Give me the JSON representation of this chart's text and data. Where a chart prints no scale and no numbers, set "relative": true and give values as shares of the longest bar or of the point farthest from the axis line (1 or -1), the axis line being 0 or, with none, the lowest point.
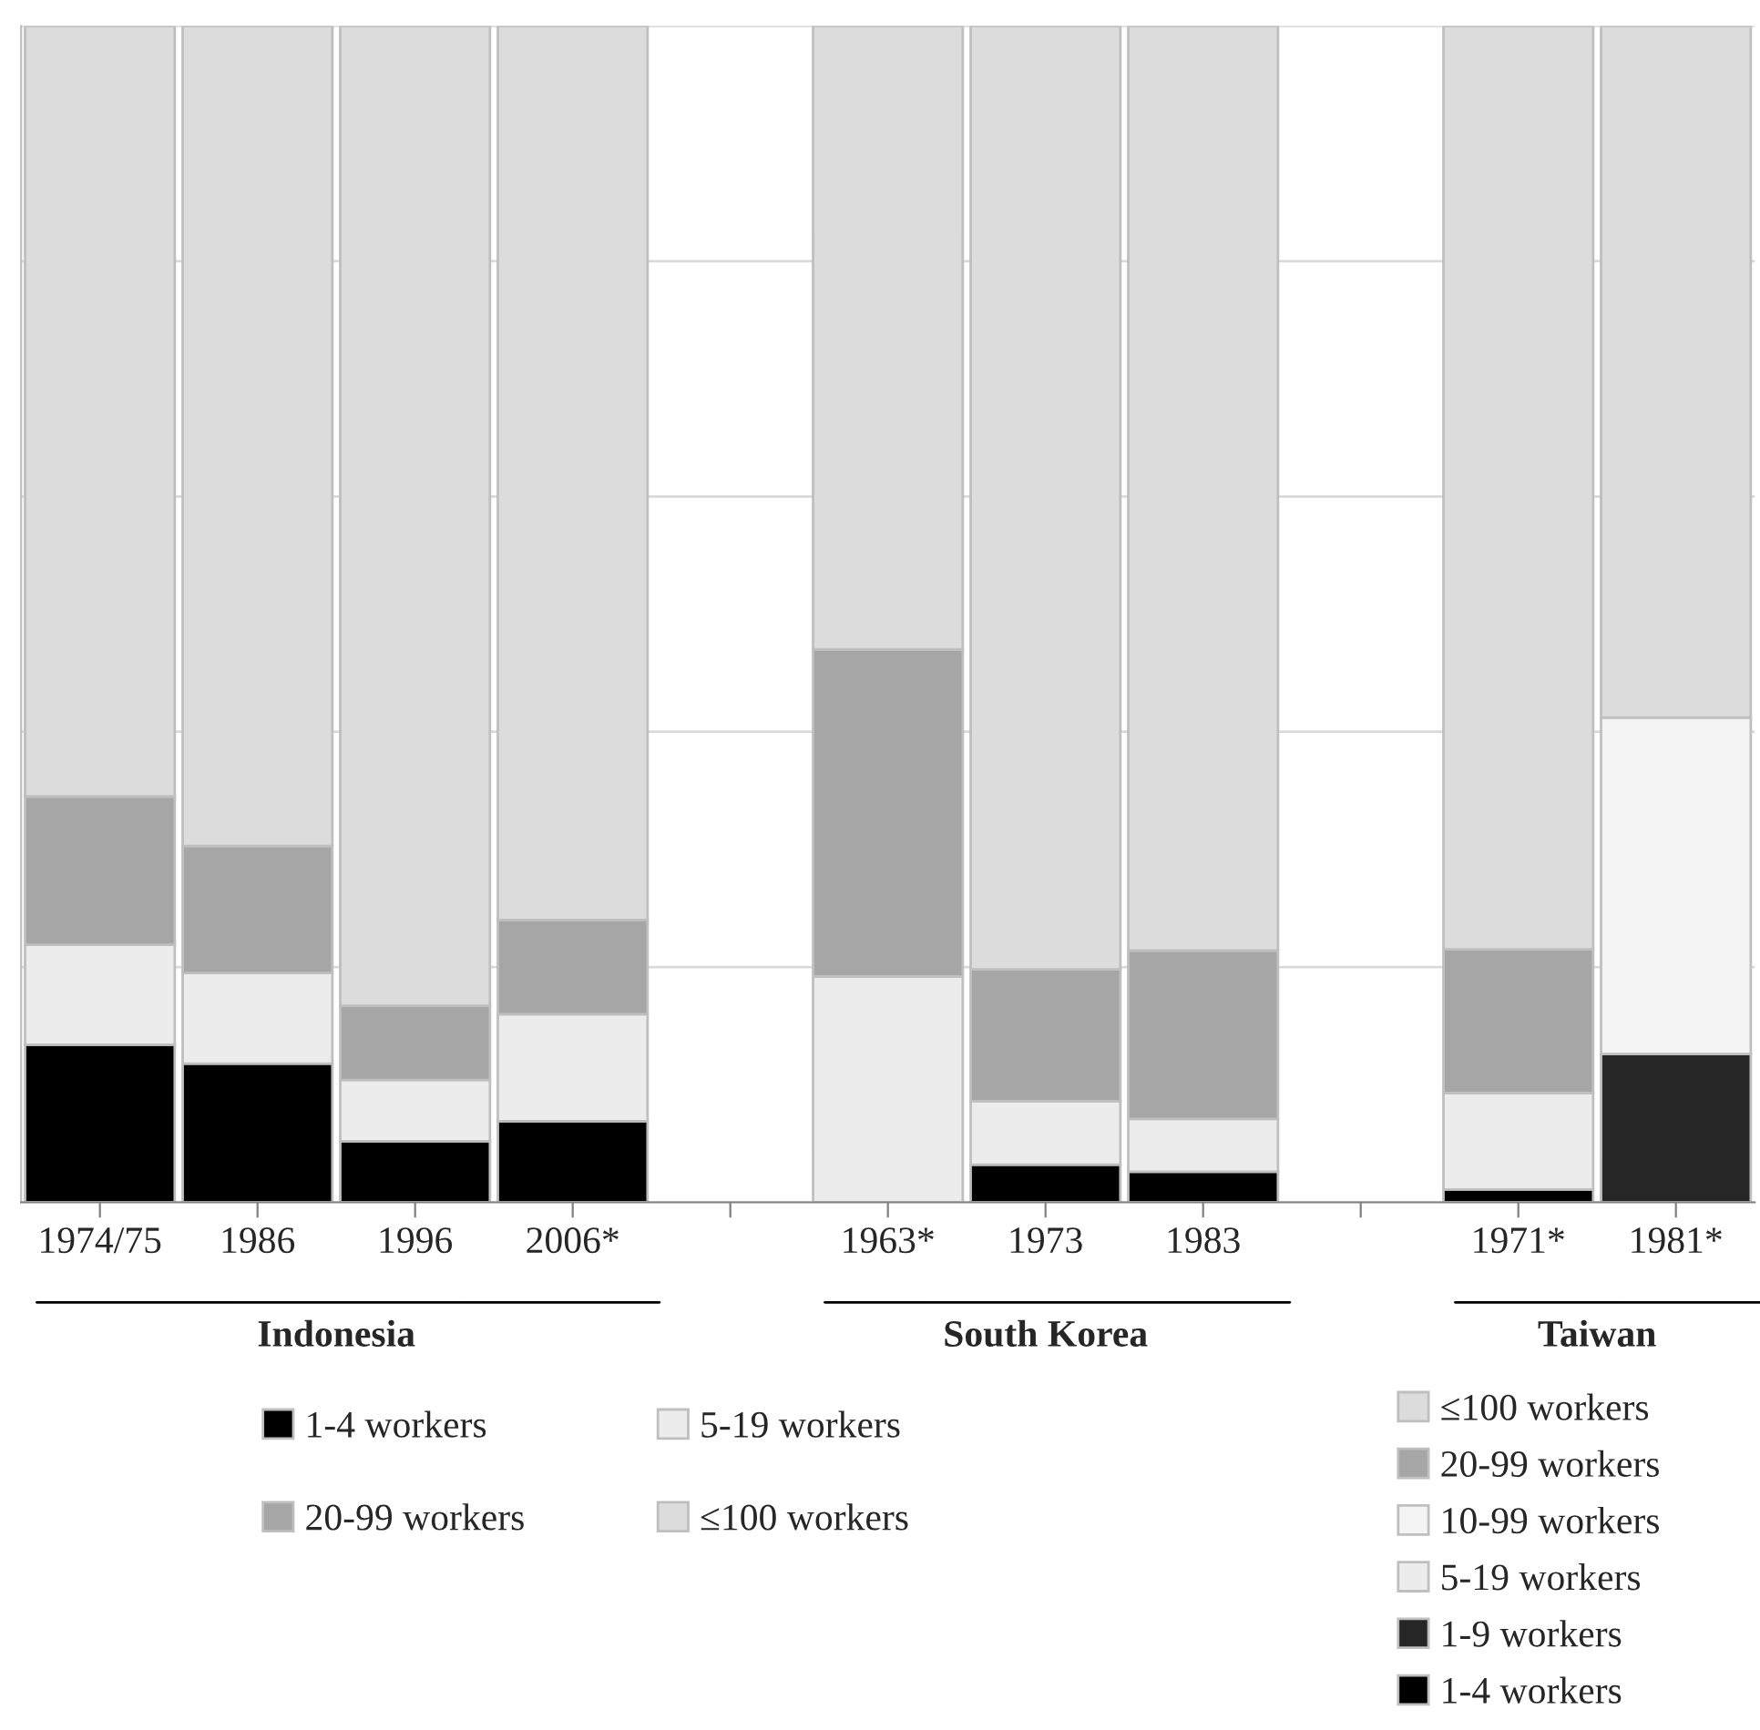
{
  "chart_data": {
    "type": "bar",
    "stacked": true,
    "relative": true,
    "grid": "y",
    "legend": "bottom",
    "categories": [
      "1974/75",
      "1986",
      "1996",
      "2006*",
      null,
      "1963*",
      "1973",
      "1983",
      null,
      "1971*",
      "1981*"
    ],
    "annotations": [
      "Indonesia",
      "South Korea",
      "Taiwan"
    ],
    "series": [
      {
        "name": "1-4 workers",
        "color": "#000000",
        "values": [
          0.134,
          0.118,
          0.052,
          0.069,
          null,
          0,
          0.032,
          0.026,
          null,
          0.011,
          null
        ]
      },
      {
        "name": "1-9 workers",
        "color": "#262626",
        "values": [
          null,
          null,
          null,
          null,
          null,
          null,
          null,
          null,
          null,
          null,
          0.126
        ]
      },
      {
        "name": "5-19 workers",
        "color": "#ececec",
        "values": [
          0.085,
          0.077,
          0.052,
          0.091,
          null,
          0.192,
          0.054,
          0.045,
          null,
          0.082,
          null
        ]
      },
      {
        "name": "10-99 workers",
        "color": "#f4f4f4",
        "values": [
          null,
          null,
          null,
          null,
          null,
          null,
          null,
          null,
          null,
          null,
          0.286
        ]
      },
      {
        "name": "20-99 workers",
        "color": "#a6a6a6",
        "values": [
          0.126,
          0.108,
          0.063,
          0.08,
          null,
          0.278,
          0.112,
          0.143,
          null,
          0.122,
          null
        ]
      },
      {
        "name": "≤100 workers",
        "color": "#dcdcdc",
        "values": [
          0.655,
          0.697,
          0.833,
          0.76,
          null,
          0.53,
          0.802,
          0.786,
          null,
          0.785,
          0.588
        ]
      }
    ]
  }
}
